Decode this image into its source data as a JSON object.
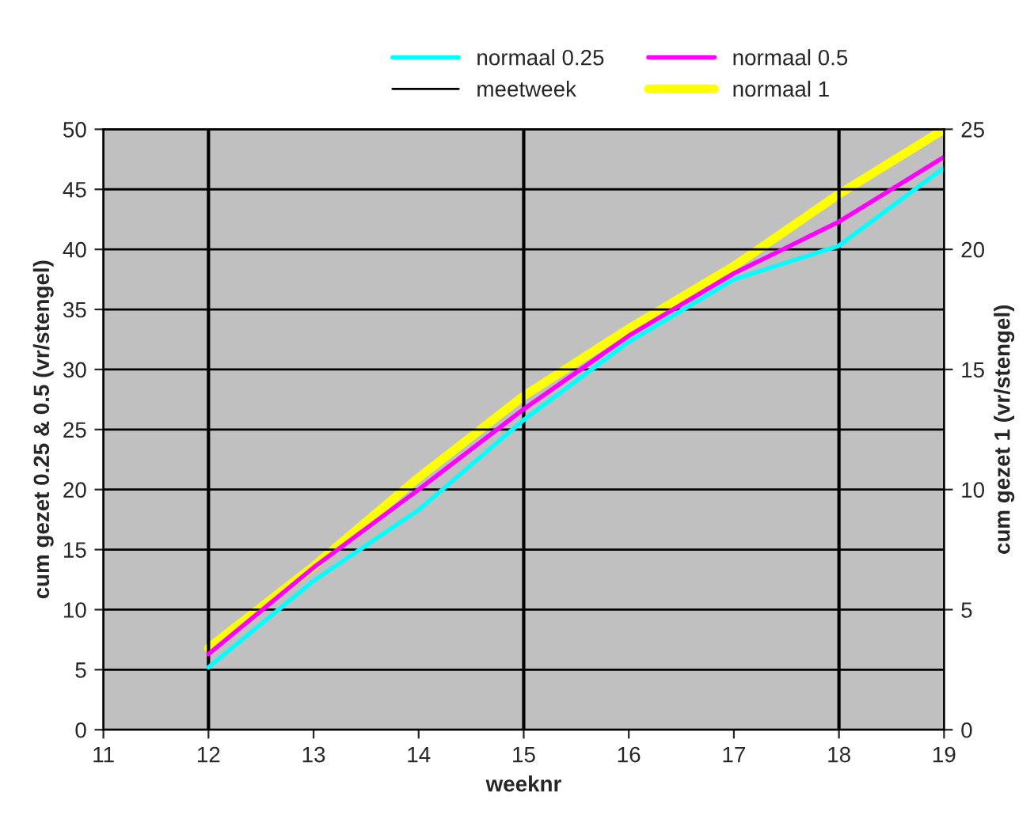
{
  "chart_data": {
    "type": "line",
    "x": [
      12,
      13,
      14,
      15,
      16,
      17,
      18,
      19
    ],
    "xlabel": "weeknr",
    "ylabel": "cum gezet 0.25 & 0.5 (vr/stengel)",
    "y2label": "cum gezet 1 (vr/stengel)",
    "xlim": [
      11,
      19
    ],
    "xticks": [
      11,
      12,
      13,
      14,
      15,
      16,
      17,
      18,
      19
    ],
    "ylim": [
      0,
      50
    ],
    "yticks": [
      0,
      5,
      10,
      15,
      20,
      25,
      30,
      35,
      40,
      45,
      50
    ],
    "y2lim": [
      0,
      25
    ],
    "y2ticks": [
      0,
      5,
      10,
      15,
      20,
      25
    ],
    "series": [
      {
        "name": "normaal 0.25",
        "color": "#00ffff",
        "values": [
          5.2,
          12.4,
          18.3,
          25.8,
          32.3,
          37.5,
          40.3,
          46.8
        ]
      },
      {
        "name": "normaal 0.5",
        "color": "#ff00ff",
        "values": [
          6.3,
          13.5,
          20.0,
          26.7,
          32.8,
          38.0,
          42.3,
          47.7
        ]
      },
      {
        "name": "normaal 1",
        "color": "#ffff00",
        "axis": "y2",
        "values": [
          3.4,
          6.8,
          10.5,
          13.9,
          16.7,
          19.3,
          22.3,
          25.0
        ]
      }
    ],
    "ref_lines": [
      {
        "axis": "x",
        "value": 12,
        "label": "meetweek",
        "color": "#000000"
      },
      {
        "axis": "x",
        "value": 15,
        "color": "#000000"
      },
      {
        "axis": "x",
        "value": 18,
        "color": "#000000"
      }
    ],
    "grid": "y",
    "legend": "top",
    "marker": "none",
    "line_style": "solid"
  }
}
